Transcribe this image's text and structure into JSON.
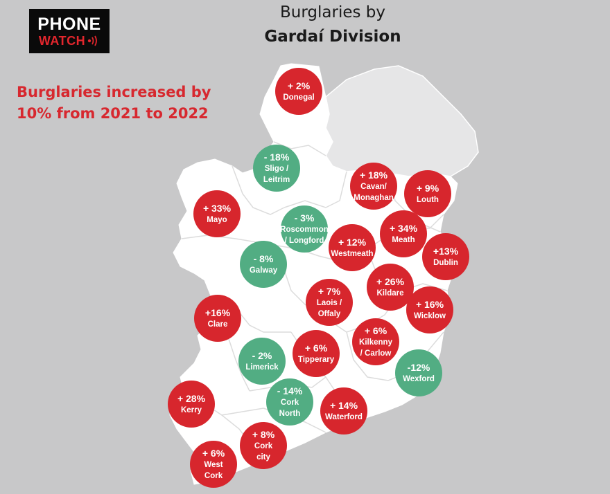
{
  "header": {
    "logo_top": "PHONE",
    "logo_bottom": "WATCH",
    "title_line1": "Burglaries by",
    "title_line2": "Gardaí Division"
  },
  "summary": {
    "line1": "Burglaries increased by",
    "line2": "10% from 2021 to 2022"
  },
  "colors": {
    "increase": "#d7262d",
    "decrease": "#52ad83",
    "land": "#ffffff",
    "northern_ireland": "#e6e6e7",
    "sea": "#c8c8c9"
  },
  "divisions": [
    {
      "change": "+ 2%",
      "name_lines": [
        "Donegal"
      ],
      "trend": "up"
    },
    {
      "change": "- 18%",
      "name_lines": [
        "Sligo /",
        "Leitrim"
      ],
      "trend": "down"
    },
    {
      "change": "+ 18%",
      "name_lines": [
        "Cavan/",
        "Monaghan"
      ],
      "trend": "up"
    },
    {
      "change": "+ 9%",
      "name_lines": [
        "Louth"
      ],
      "trend": "up"
    },
    {
      "change": "+ 33%",
      "name_lines": [
        "Mayo"
      ],
      "trend": "up"
    },
    {
      "change": "- 3%",
      "name_lines": [
        "Roscommon",
        "/ Longford"
      ],
      "trend": "down"
    },
    {
      "change": "+ 34%",
      "name_lines": [
        "Meath"
      ],
      "trend": "up"
    },
    {
      "change": "+ 12%",
      "name_lines": [
        "Westmeath"
      ],
      "trend": "up"
    },
    {
      "change": "+13%",
      "name_lines": [
        "Dublin"
      ],
      "trend": "up"
    },
    {
      "change": "- 8%",
      "name_lines": [
        "Galway"
      ],
      "trend": "down"
    },
    {
      "change": "+ 26%",
      "name_lines": [
        "Kildare"
      ],
      "trend": "up"
    },
    {
      "change": "+ 7%",
      "name_lines": [
        "Laois /",
        "Offaly"
      ],
      "trend": "up"
    },
    {
      "change": "+ 16%",
      "name_lines": [
        "Wicklow"
      ],
      "trend": "up"
    },
    {
      "change": "+16%",
      "name_lines": [
        "Clare"
      ],
      "trend": "up"
    },
    {
      "change": "+ 6%",
      "name_lines": [
        "Kilkenny",
        "/ Carlow"
      ],
      "trend": "up"
    },
    {
      "change": "+ 6%",
      "name_lines": [
        "Tipperary"
      ],
      "trend": "up"
    },
    {
      "change": "- 2%",
      "name_lines": [
        "Limerick"
      ],
      "trend": "down"
    },
    {
      "change": "-12%",
      "name_lines": [
        "Wexford"
      ],
      "trend": "down"
    },
    {
      "change": "- 14%",
      "name_lines": [
        "Cork",
        "North"
      ],
      "trend": "down"
    },
    {
      "change": "+ 28%",
      "name_lines": [
        "Kerry"
      ],
      "trend": "up"
    },
    {
      "change": "+ 14%",
      "name_lines": [
        "Waterford"
      ],
      "trend": "up"
    },
    {
      "change": "+ 8%",
      "name_lines": [
        "Cork",
        "city"
      ],
      "trend": "up"
    },
    {
      "change": "+ 6%",
      "name_lines": [
        "West",
        "Cork"
      ],
      "trend": "up"
    }
  ]
}
